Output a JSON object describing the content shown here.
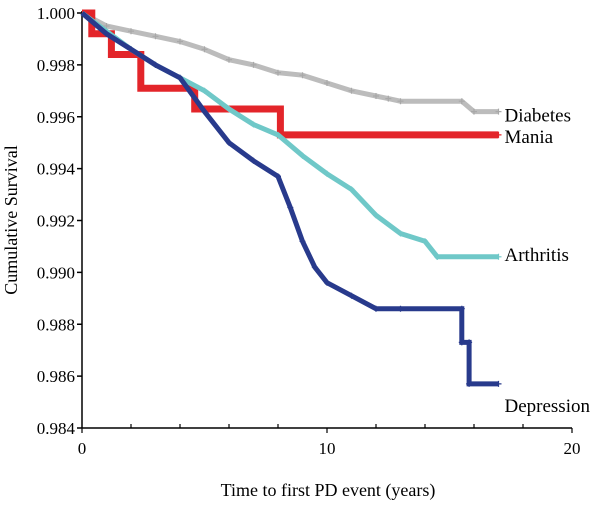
{
  "chart_data": {
    "type": "line",
    "title": "",
    "xlabel": "Time to first PD event (years)",
    "ylabel": "Cumulative Survival",
    "xlim": [
      0,
      20
    ],
    "ylim": [
      0.984,
      1.0
    ],
    "x_ticks": [
      0,
      10,
      20
    ],
    "x_tick_labels": [
      "0",
      "10",
      "20"
    ],
    "y_ticks": [
      0.984,
      0.986,
      0.988,
      0.99,
      0.992,
      0.994,
      0.996,
      0.998,
      1.0
    ],
    "y_tick_labels": [
      "0.984",
      "0.986",
      "0.988",
      "0.990",
      "0.992",
      "0.994",
      "0.996",
      "0.998",
      "1.000"
    ],
    "grid": false,
    "series": [
      {
        "name": "Diabetes",
        "color": "#bcbcbc",
        "x": [
          0,
          1.0,
          2.0,
          3.0,
          4.0,
          5.0,
          6.0,
          7.0,
          8.0,
          9.0,
          10.0,
          11.0,
          12.0,
          12.5,
          13.0,
          15.5,
          16.0,
          17.0
        ],
        "y": [
          1.0,
          0.9995,
          0.9993,
          0.9991,
          0.9989,
          0.9986,
          0.9982,
          0.998,
          0.9977,
          0.9976,
          0.9973,
          0.997,
          0.9968,
          0.9967,
          0.9966,
          0.9966,
          0.9962,
          0.9962
        ]
      },
      {
        "name": "Mania",
        "color": "#e3252a",
        "x": [
          0,
          0.4,
          0.4,
          1.2,
          1.2,
          2.4,
          2.4,
          4.6,
          4.6,
          8.1,
          8.1,
          17.0
        ],
        "y": [
          1.0,
          1.0,
          0.9992,
          0.9992,
          0.9984,
          0.9984,
          0.9971,
          0.9971,
          0.9963,
          0.9963,
          0.9953,
          0.9953
        ]
      },
      {
        "name": "Arthritis",
        "color": "#6fc8c8",
        "x": [
          0,
          1.0,
          2.0,
          3.0,
          4.0,
          5.0,
          6.0,
          7.0,
          8.0,
          9.0,
          10.0,
          11.0,
          12.0,
          13.0,
          14.0,
          14.5,
          14.5,
          17.0
        ],
        "y": [
          1.0,
          0.9993,
          0.9986,
          0.998,
          0.9975,
          0.997,
          0.9963,
          0.9957,
          0.9953,
          0.9945,
          0.9938,
          0.9932,
          0.9922,
          0.9915,
          0.9912,
          0.9906,
          0.9906,
          0.9906
        ]
      },
      {
        "name": "Depression",
        "color": "#283a8c",
        "x": [
          0,
          1.0,
          2.0,
          3.0,
          4.0,
          5.0,
          6.0,
          7.0,
          8.0,
          8.5,
          9.0,
          9.5,
          10.0,
          11.0,
          12.0,
          13.0,
          15.5,
          15.5,
          15.8,
          15.8,
          17.0
        ],
        "y": [
          1.0,
          0.9992,
          0.9986,
          0.998,
          0.9975,
          0.9962,
          0.995,
          0.9943,
          0.9937,
          0.9925,
          0.9912,
          0.9902,
          0.9896,
          0.9891,
          0.9886,
          0.9886,
          0.9886,
          0.9873,
          0.9873,
          0.9857,
          0.9857
        ]
      }
    ]
  }
}
